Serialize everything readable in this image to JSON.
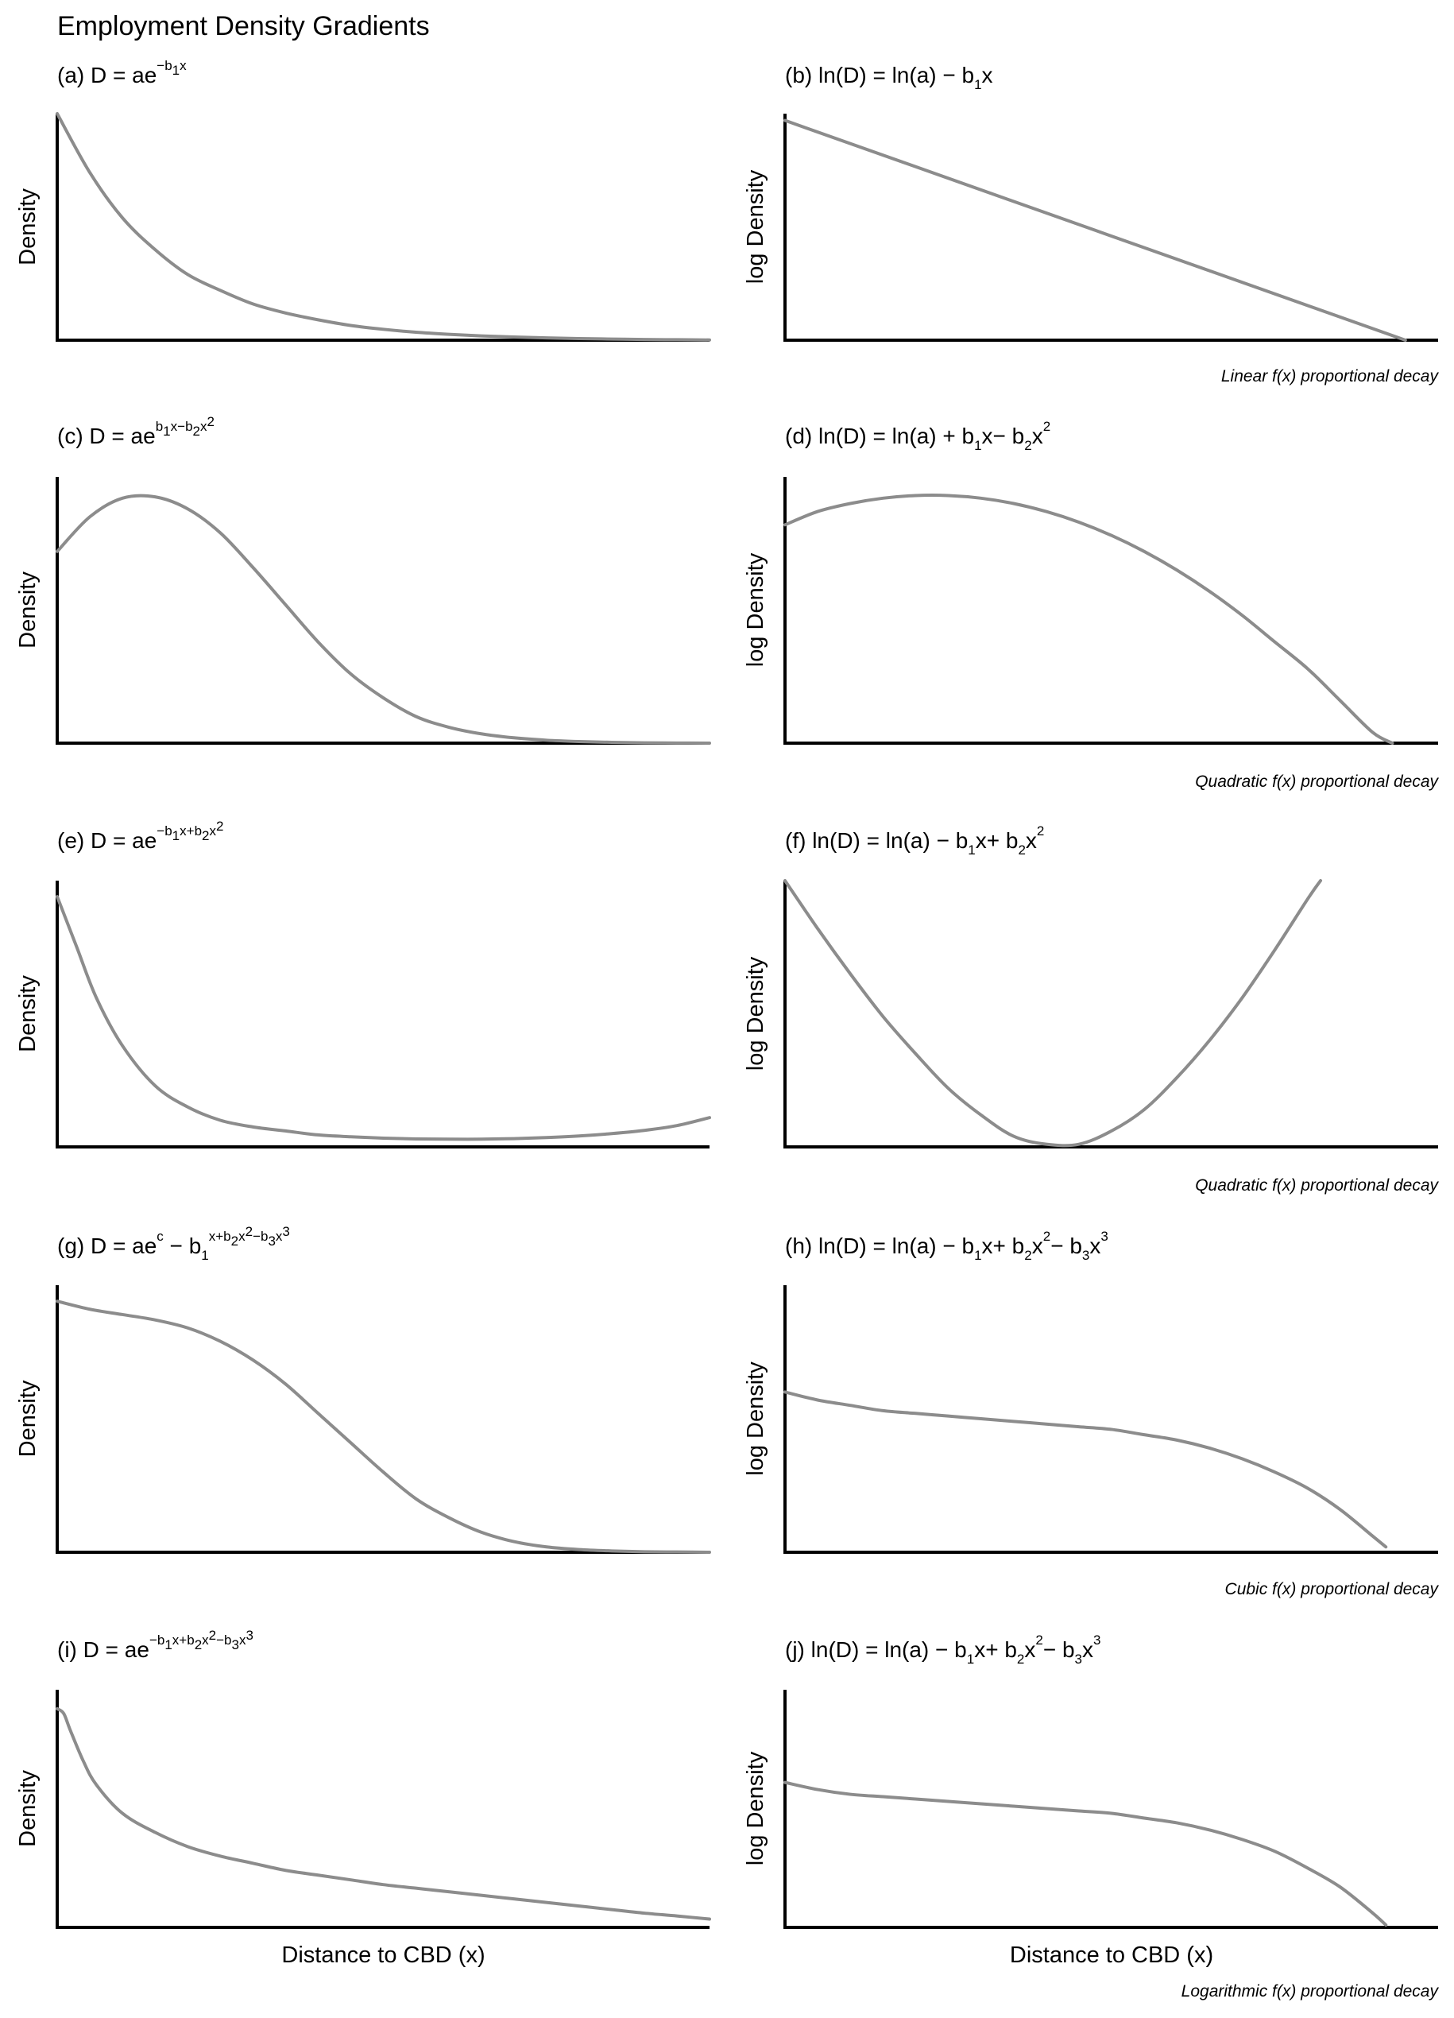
{
  "title": "Employment Density Gradients",
  "xlabel": "Distance to CBD (x)",
  "ylabel_density": "Density",
  "ylabel_log": "log Density",
  "colors": {
    "curve": "#8c8c8c",
    "axis": "#000000"
  },
  "row_notes": [
    "Linear f(x) proportional decay",
    "Quadratic f(x) proportional decay",
    "Quadratic f(x) proportional decay",
    "Cubic f(x) proportional decay",
    "Logarithmic f(x) proportional decay"
  ],
  "chart_data": [
    {
      "id": "a",
      "type": "line",
      "ylabel": "Density",
      "title_parts": [
        [
          "(a) D = ae",
          ""
        ],
        [
          "−b",
          "sup"
        ],
        [
          "1",
          "sup-sub"
        ],
        [
          "x",
          "sup"
        ]
      ],
      "x": [
        0,
        0.05,
        0.1,
        0.15,
        0.2,
        0.25,
        0.3,
        0.35,
        0.4,
        0.45,
        0.5,
        0.55,
        0.6,
        0.65,
        0.7,
        0.75,
        0.8,
        0.85,
        0.9,
        0.95,
        1.0
      ],
      "y": [
        1.0,
        0.74,
        0.54,
        0.4,
        0.29,
        0.22,
        0.16,
        0.12,
        0.09,
        0.065,
        0.048,
        0.035,
        0.026,
        0.019,
        0.014,
        0.01,
        0.007,
        0.005,
        0.003,
        0.002,
        0.001
      ]
    },
    {
      "id": "b",
      "type": "line",
      "ylabel": "log Density",
      "title_parts": [
        [
          "(b) ln(D) = ln(a) − b",
          ""
        ],
        [
          "1",
          "sub"
        ],
        [
          "x",
          ""
        ]
      ],
      "x": [
        0,
        0.95
      ],
      "y": [
        0.97,
        0.0
      ]
    },
    {
      "id": "c",
      "type": "line",
      "ylabel": "Density",
      "title_parts": [
        [
          "(c) D = ae",
          ""
        ],
        [
          "b",
          "sup"
        ],
        [
          "1",
          "sup-sub"
        ],
        [
          "x−b",
          "sup"
        ],
        [
          "2",
          "sup-sub"
        ],
        [
          "x",
          "sup"
        ],
        [
          "2",
          "sup-sup"
        ]
      ],
      "x": [
        0,
        0.05,
        0.1,
        0.15,
        0.2,
        0.25,
        0.3,
        0.35,
        0.4,
        0.45,
        0.5,
        0.55,
        0.6,
        0.65,
        0.7,
        0.75,
        0.8,
        0.85,
        0.9,
        0.95,
        1.0
      ],
      "y": [
        0.72,
        0.85,
        0.92,
        0.925,
        0.88,
        0.79,
        0.66,
        0.52,
        0.38,
        0.26,
        0.17,
        0.1,
        0.06,
        0.035,
        0.02,
        0.011,
        0.006,
        0.003,
        0.001,
        0.0005,
        0.0
      ]
    },
    {
      "id": "d",
      "type": "line",
      "ylabel": "log Density",
      "title_parts": [
        [
          "(d) ln(D) = ln(a) + b",
          ""
        ],
        [
          "1",
          "sub"
        ],
        [
          "x− b",
          ""
        ],
        [
          "2",
          "sub"
        ],
        [
          "x",
          ""
        ],
        [
          "2",
          "sup"
        ]
      ],
      "x": [
        0,
        0.05,
        0.1,
        0.15,
        0.2,
        0.25,
        0.3,
        0.35,
        0.4,
        0.45,
        0.5,
        0.55,
        0.6,
        0.65,
        0.7,
        0.75,
        0.8,
        0.85,
        0.9,
        0.93
      ],
      "y": [
        0.82,
        0.87,
        0.9,
        0.92,
        0.93,
        0.93,
        0.92,
        0.9,
        0.87,
        0.83,
        0.78,
        0.72,
        0.65,
        0.57,
        0.48,
        0.38,
        0.28,
        0.16,
        0.04,
        0.0
      ]
    },
    {
      "id": "e",
      "type": "line",
      "ylabel": "Density",
      "title_parts": [
        [
          "(e) D = ae",
          ""
        ],
        [
          "−b",
          "sup"
        ],
        [
          "1",
          "sup-sub"
        ],
        [
          "x+b",
          "sup"
        ],
        [
          "2",
          "sup-sub"
        ],
        [
          "x",
          "sup"
        ],
        [
          "2",
          "sup-sup"
        ]
      ],
      "x": [
        0,
        0.03,
        0.06,
        0.1,
        0.15,
        0.2,
        0.25,
        0.3,
        0.35,
        0.4,
        0.45,
        0.5,
        0.55,
        0.6,
        0.65,
        0.7,
        0.75,
        0.8,
        0.85,
        0.9,
        0.95,
        1.0
      ],
      "y": [
        0.94,
        0.75,
        0.56,
        0.38,
        0.23,
        0.15,
        0.1,
        0.075,
        0.06,
        0.045,
        0.038,
        0.033,
        0.03,
        0.029,
        0.029,
        0.031,
        0.035,
        0.041,
        0.05,
        0.062,
        0.08,
        0.11
      ]
    },
    {
      "id": "f",
      "type": "line",
      "ylabel": "log Density",
      "title_parts": [
        [
          "(f) ln(D) = ln(a) − b",
          ""
        ],
        [
          "1",
          "sub"
        ],
        [
          "x+ b",
          ""
        ],
        [
          "2",
          "sub"
        ],
        [
          "x",
          ""
        ],
        [
          "2",
          "sup"
        ]
      ],
      "x": [
        0,
        0.05,
        0.1,
        0.15,
        0.2,
        0.25,
        0.3,
        0.35,
        0.4,
        0.45,
        0.5,
        0.55,
        0.6,
        0.65,
        0.7,
        0.75,
        0.8,
        0.82
      ],
      "y": [
        1.0,
        0.82,
        0.65,
        0.49,
        0.35,
        0.22,
        0.12,
        0.04,
        0.01,
        0.01,
        0.06,
        0.14,
        0.26,
        0.4,
        0.56,
        0.74,
        0.93,
        1.0
      ]
    },
    {
      "id": "g",
      "type": "line",
      "ylabel": "Density",
      "title_parts": [
        [
          "(g) D = ae",
          ""
        ],
        [
          "c",
          "sup"
        ],
        [
          " − b",
          ""
        ],
        [
          "1",
          "sub"
        ],
        [
          "x+b",
          "sup"
        ],
        [
          "2",
          "sup-sub"
        ],
        [
          "x",
          "sup"
        ],
        [
          "2",
          "sup-sup"
        ],
        [
          "−b",
          "sup"
        ],
        [
          "3",
          "sup-sub"
        ],
        [
          "x",
          "sup"
        ],
        [
          "3",
          "sup-sup"
        ]
      ],
      "x": [
        0,
        0.05,
        0.1,
        0.15,
        0.2,
        0.25,
        0.3,
        0.35,
        0.4,
        0.45,
        0.5,
        0.55,
        0.6,
        0.65,
        0.7,
        0.75,
        0.8,
        0.85,
        0.9,
        0.95,
        1.0
      ],
      "y": [
        0.94,
        0.91,
        0.89,
        0.87,
        0.84,
        0.79,
        0.72,
        0.63,
        0.52,
        0.41,
        0.3,
        0.2,
        0.13,
        0.075,
        0.04,
        0.02,
        0.01,
        0.005,
        0.002,
        0.001,
        0.0
      ]
    },
    {
      "id": "h",
      "type": "line",
      "ylabel": "log Density",
      "title_parts": [
        [
          "(h) ln(D) = ln(a) − b",
          ""
        ],
        [
          "1",
          "sub"
        ],
        [
          "x+ b",
          ""
        ],
        [
          "2",
          "sub"
        ],
        [
          "x",
          ""
        ],
        [
          "2",
          "sup"
        ],
        [
          "− b",
          ""
        ],
        [
          "3",
          "sub"
        ],
        [
          "x",
          ""
        ],
        [
          "3",
          "sup"
        ]
      ],
      "x": [
        0,
        0.05,
        0.1,
        0.15,
        0.2,
        0.25,
        0.3,
        0.35,
        0.4,
        0.45,
        0.5,
        0.55,
        0.6,
        0.65,
        0.7,
        0.75,
        0.8,
        0.85,
        0.9,
        0.92
      ],
      "y": [
        0.6,
        0.57,
        0.55,
        0.53,
        0.52,
        0.51,
        0.5,
        0.49,
        0.48,
        0.47,
        0.46,
        0.44,
        0.42,
        0.39,
        0.35,
        0.3,
        0.24,
        0.16,
        0.06,
        0.02
      ]
    },
    {
      "id": "i",
      "type": "line",
      "ylabel": "Density",
      "title_parts": [
        [
          "(i) D = ae",
          ""
        ],
        [
          "−b",
          "sup"
        ],
        [
          "1",
          "sup-sub"
        ],
        [
          "x+b",
          "sup"
        ],
        [
          "2",
          "sup-sub"
        ],
        [
          "x",
          "sup"
        ],
        [
          "2",
          "sup-sup"
        ],
        [
          "−b",
          "sup"
        ],
        [
          "3",
          "sup-sub"
        ],
        [
          "x",
          "sup"
        ],
        [
          "3",
          "sup-sup"
        ]
      ],
      "x": [
        0,
        0.01,
        0.02,
        0.04,
        0.06,
        0.1,
        0.15,
        0.2,
        0.25,
        0.3,
        0.35,
        0.4,
        0.45,
        0.5,
        0.55,
        0.6,
        0.65,
        0.7,
        0.75,
        0.8,
        0.85,
        0.9,
        0.95,
        1.0
      ],
      "y": [
        0.92,
        0.9,
        0.83,
        0.7,
        0.6,
        0.48,
        0.4,
        0.34,
        0.3,
        0.27,
        0.24,
        0.22,
        0.2,
        0.18,
        0.165,
        0.15,
        0.135,
        0.12,
        0.105,
        0.09,
        0.075,
        0.06,
        0.048,
        0.035
      ]
    },
    {
      "id": "j",
      "type": "line",
      "ylabel": "log Density",
      "title_parts": [
        [
          "(j) ln(D) = ln(a) − b",
          ""
        ],
        [
          "1",
          "sub"
        ],
        [
          "x+ b",
          ""
        ],
        [
          "2",
          "sub"
        ],
        [
          "x",
          ""
        ],
        [
          "2",
          "sup"
        ],
        [
          "− b",
          ""
        ],
        [
          "3",
          "sub"
        ],
        [
          "x",
          ""
        ],
        [
          "3",
          "sup"
        ]
      ],
      "x": [
        0,
        0.05,
        0.1,
        0.15,
        0.2,
        0.25,
        0.3,
        0.35,
        0.4,
        0.45,
        0.5,
        0.55,
        0.6,
        0.65,
        0.7,
        0.75,
        0.8,
        0.85,
        0.9,
        0.92
      ],
      "y": [
        0.61,
        0.58,
        0.56,
        0.55,
        0.54,
        0.53,
        0.52,
        0.51,
        0.5,
        0.49,
        0.48,
        0.46,
        0.44,
        0.41,
        0.37,
        0.32,
        0.25,
        0.17,
        0.06,
        0.01
      ]
    }
  ]
}
